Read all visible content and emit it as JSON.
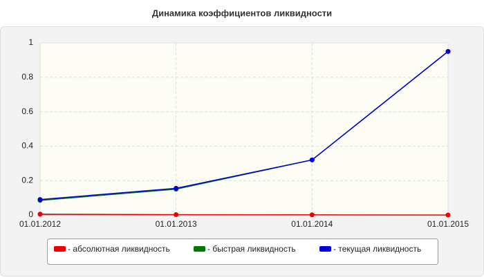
{
  "chart_data": {
    "type": "line",
    "title": "Динамика коэффициентов ликвидности",
    "categories": [
      "01.01.2012",
      "01.01.2013",
      "01.01.2014",
      "01.01.2015"
    ],
    "series": [
      {
        "name": "- абсолютная ликвидность",
        "color": "#ee0000",
        "values": [
          0.005,
          0.002,
          0.001,
          0
        ]
      },
      {
        "name": "- быстрая ликвидность",
        "color": "#007700",
        "values": [
          0.085,
          0.15,
          0.32,
          0.95
        ]
      },
      {
        "name": "- текущая ликвидность",
        "color": "#0000dd",
        "values": [
          0.09,
          0.155,
          0.32,
          0.95
        ]
      }
    ],
    "ylim": [
      0,
      1
    ],
    "yticks": [
      0,
      0.2,
      0.4,
      0.6,
      0.8,
      1
    ],
    "grid": true
  }
}
